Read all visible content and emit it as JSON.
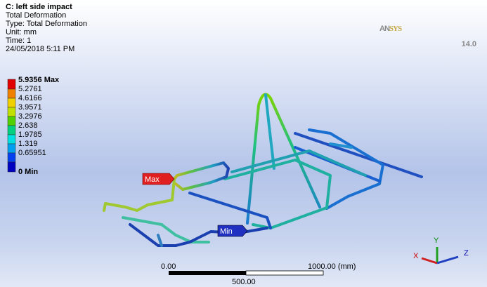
{
  "header": {
    "title": "C: left side impact",
    "lines": [
      "Total Deformation",
      "Type: Total Deformation",
      "Unit: mm",
      "Time: 1",
      "24/05/2018 5:11 PM"
    ]
  },
  "legend": [
    "5.9356 Max",
    "5.2761",
    "4.6166",
    "3.9571",
    "3.2976",
    "2.638",
    "1.9785",
    "1.319",
    "0.65951",
    "0 Min"
  ],
  "logo": {
    "part1": "AN",
    "part2": "SYS",
    "version": "14.0"
  },
  "probes": {
    "max": "Max",
    "min": "Min"
  },
  "scale": {
    "start": "0.00",
    "end": "1000.00 (mm)",
    "mid": "500.00"
  },
  "triad": {
    "x": "X",
    "y": "Y",
    "z": "Z"
  }
}
